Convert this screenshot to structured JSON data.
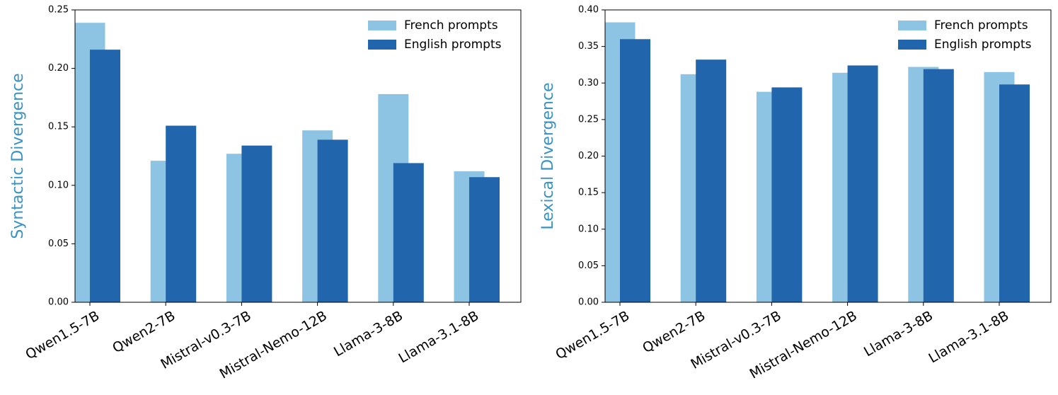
{
  "chart_data": [
    {
      "type": "bar",
      "y_label": "Syntactic Divergence",
      "y_label_color": "#3a93c3",
      "categories": [
        "Qwen1.5-7B",
        "Qwen2-7B",
        "Mistral-v0.3-7B",
        "Mistral-Nemo-12B",
        "Llama-3-8B",
        "Llama-3.1-8B"
      ],
      "series": [
        {
          "name": "French prompts",
          "color": "#8ec4e3",
          "values": [
            0.239,
            0.121,
            0.127,
            0.147,
            0.178,
            0.112
          ]
        },
        {
          "name": "English prompts",
          "color": "#2166ac",
          "values": [
            0.216,
            0.151,
            0.134,
            0.139,
            0.119,
            0.107
          ]
        }
      ],
      "ylim": [
        0,
        0.25
      ],
      "yticks": [
        {
          "value": 0,
          "label": "0.00"
        },
        {
          "value": 0.05,
          "label": "0.05"
        },
        {
          "value": 0.1,
          "label": "0.10"
        },
        {
          "value": 0.15,
          "label": "0.15"
        },
        {
          "value": 0.2,
          "label": "0.20"
        },
        {
          "value": 0.25,
          "label": "0.25"
        }
      ],
      "legend": "upper right"
    },
    {
      "type": "bar",
      "y_label": "Lexical Divergence",
      "y_label_color": "#3a93c3",
      "categories": [
        "Qwen1.5-7B",
        "Qwen2-7B",
        "Mistral-v0.3-7B",
        "Mistral-Nemo-12B",
        "Llama-3-8B",
        "Llama-3.1-8B"
      ],
      "series": [
        {
          "name": "French prompts",
          "color": "#8ec4e3",
          "values": [
            0.383,
            0.312,
            0.288,
            0.314,
            0.322,
            0.315
          ]
        },
        {
          "name": "English prompts",
          "color": "#2166ac",
          "values": [
            0.36,
            0.332,
            0.294,
            0.324,
            0.319,
            0.298
          ]
        }
      ],
      "ylim": [
        0,
        0.4
      ],
      "yticks": [
        {
          "value": 0,
          "label": "0.00"
        },
        {
          "value": 0.05,
          "label": "0.05"
        },
        {
          "value": 0.1,
          "label": "0.10"
        },
        {
          "value": 0.15,
          "label": "0.15"
        },
        {
          "value": 0.2,
          "label": "0.20"
        },
        {
          "value": 0.25,
          "label": "0.25"
        },
        {
          "value": 0.3,
          "label": "0.30"
        },
        {
          "value": 0.35,
          "label": "0.35"
        },
        {
          "value": 0.4,
          "label": "0.40"
        }
      ],
      "legend": "upper right"
    }
  ]
}
